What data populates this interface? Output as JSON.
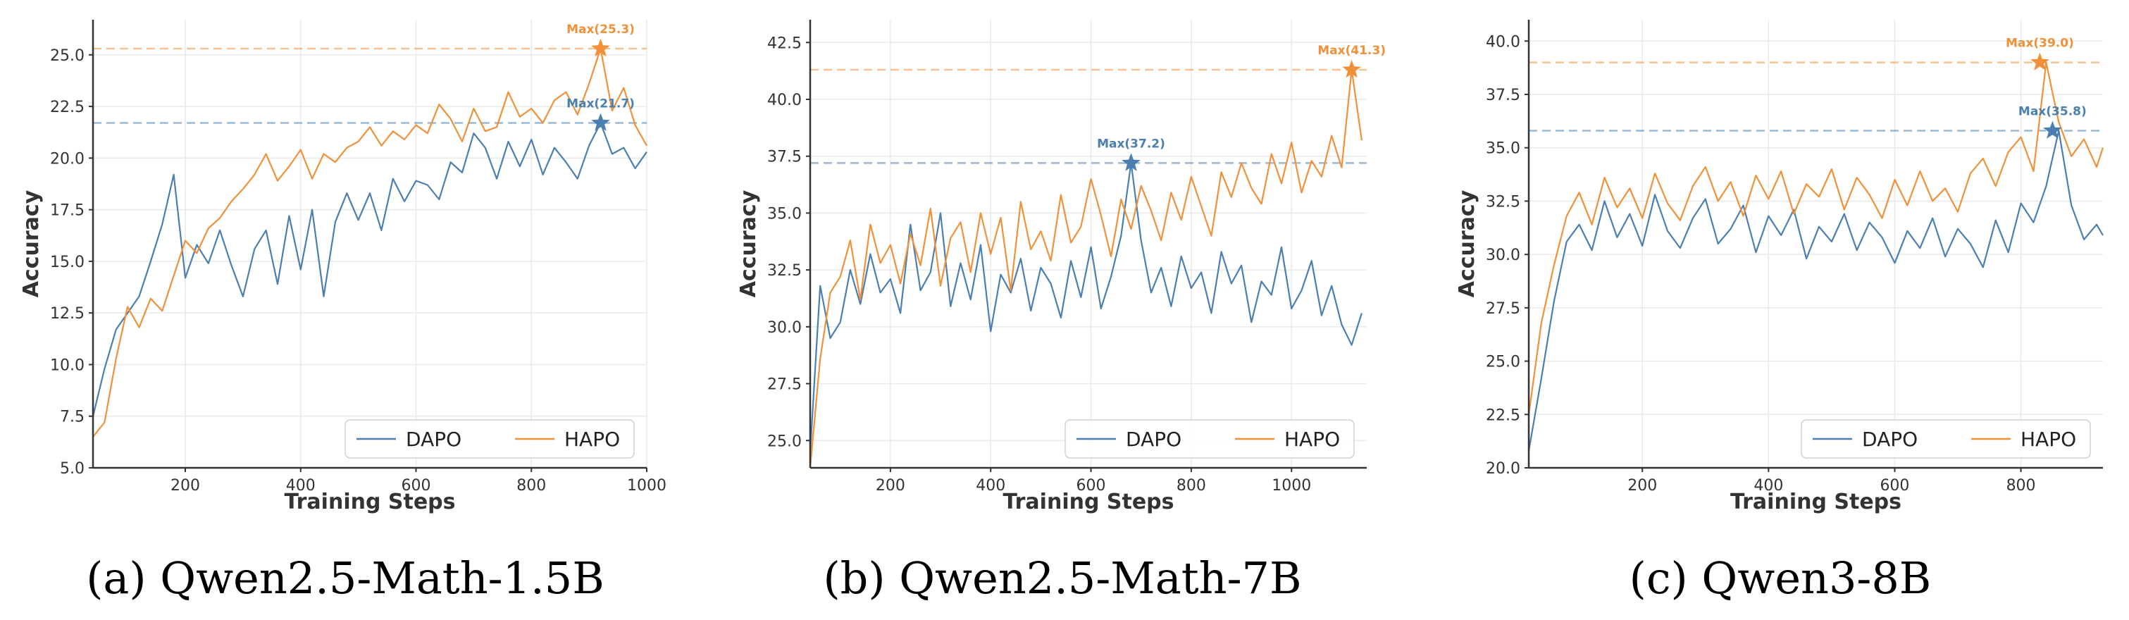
{
  "colors": {
    "dapo": "#4a7fb0",
    "hapo": "#f0913a",
    "grid": "#e9e9e9",
    "axis": "#333333"
  },
  "chart_data": [
    {
      "type": "line",
      "caption": "(a) Qwen2.5-Math-1.5B",
      "xlabel": "Training Steps",
      "ylabel": "Accuracy",
      "xlim": [
        40,
        1000
      ],
      "ylim": [
        5.0,
        26.7
      ],
      "xticks": [
        200,
        400,
        600,
        800,
        1000
      ],
      "yticks": [
        5.0,
        7.5,
        10.0,
        12.5,
        15.0,
        17.5,
        20.0,
        22.5,
        25.0
      ],
      "grid": true,
      "legend": "lower-right",
      "series": [
        {
          "name": "DAPO",
          "color_key": "dapo",
          "x": [
            40,
            60,
            80,
            100,
            120,
            140,
            160,
            180,
            200,
            220,
            240,
            260,
            280,
            300,
            320,
            340,
            360,
            380,
            400,
            420,
            440,
            460,
            480,
            500,
            520,
            540,
            560,
            580,
            600,
            620,
            640,
            660,
            680,
            700,
            720,
            740,
            760,
            780,
            800,
            820,
            840,
            860,
            880,
            900,
            920,
            940,
            960,
            980,
            1000
          ],
          "y": [
            7.5,
            9.8,
            11.7,
            12.5,
            13.3,
            15.0,
            16.8,
            19.2,
            14.2,
            15.8,
            14.9,
            16.5,
            14.8,
            13.3,
            15.6,
            16.5,
            13.9,
            17.2,
            14.6,
            17.5,
            13.3,
            16.9,
            18.3,
            17.0,
            18.3,
            16.5,
            19.0,
            17.9,
            18.9,
            18.7,
            18.0,
            19.8,
            19.3,
            21.2,
            20.5,
            19.0,
            20.8,
            19.6,
            20.9,
            19.2,
            20.5,
            19.8,
            19.0,
            20.6,
            21.7,
            20.2,
            20.5,
            19.5,
            20.3
          ],
          "max": {
            "x": 920,
            "y": 21.7,
            "label": "Max(21.7)"
          }
        },
        {
          "name": "HAPO",
          "color_key": "hapo",
          "x": [
            40,
            60,
            80,
            100,
            120,
            140,
            160,
            180,
            200,
            220,
            240,
            260,
            280,
            300,
            320,
            340,
            360,
            380,
            400,
            420,
            440,
            460,
            480,
            500,
            520,
            540,
            560,
            580,
            600,
            620,
            640,
            660,
            680,
            700,
            720,
            740,
            760,
            780,
            800,
            820,
            840,
            860,
            880,
            900,
            920,
            940,
            960,
            980,
            1000
          ],
          "y": [
            6.5,
            7.2,
            10.3,
            12.8,
            11.8,
            13.2,
            12.6,
            14.3,
            16.0,
            15.4,
            16.6,
            17.1,
            17.9,
            18.5,
            19.2,
            20.2,
            18.9,
            19.6,
            20.4,
            19.0,
            20.2,
            19.8,
            20.5,
            20.8,
            21.5,
            20.6,
            21.3,
            20.9,
            21.6,
            21.2,
            22.6,
            21.9,
            20.8,
            22.4,
            21.3,
            21.5,
            23.2,
            22.0,
            22.4,
            21.7,
            22.8,
            23.2,
            22.1,
            23.6,
            25.3,
            22.3,
            23.4,
            21.6,
            20.6
          ],
          "max": {
            "x": 920,
            "y": 25.3,
            "label": "Max(25.3)"
          }
        }
      ]
    },
    {
      "type": "line",
      "caption": "(b) Qwen2.5-Math-7B",
      "xlabel": "Training Steps",
      "ylabel": "Accuracy",
      "xlim": [
        40,
        1150
      ],
      "ylim": [
        23.8,
        43.5
      ],
      "xticks": [
        200,
        400,
        600,
        800,
        1000
      ],
      "yticks": [
        25.0,
        27.5,
        30.0,
        32.5,
        35.0,
        37.5,
        40.0,
        42.5
      ],
      "grid": true,
      "legend": "lower-right",
      "series": [
        {
          "name": "DAPO",
          "color_key": "dapo",
          "x": [
            40,
            60,
            80,
            100,
            120,
            140,
            160,
            180,
            200,
            220,
            240,
            260,
            280,
            300,
            320,
            340,
            360,
            380,
            400,
            420,
            440,
            460,
            480,
            500,
            520,
            540,
            560,
            580,
            600,
            620,
            640,
            660,
            680,
            700,
            720,
            740,
            760,
            780,
            800,
            820,
            840,
            860,
            880,
            900,
            920,
            940,
            960,
            980,
            1000,
            1020,
            1040,
            1060,
            1080,
            1100,
            1120,
            1140
          ],
          "y": [
            24.5,
            31.8,
            29.5,
            30.2,
            32.5,
            31.0,
            33.2,
            31.5,
            32.1,
            30.6,
            34.5,
            31.6,
            32.4,
            35.0,
            30.9,
            32.8,
            31.2,
            33.6,
            29.8,
            32.3,
            31.5,
            33.0,
            30.7,
            32.6,
            31.9,
            30.4,
            32.9,
            31.3,
            33.5,
            30.8,
            32.2,
            34.0,
            37.2,
            33.8,
            31.5,
            32.6,
            30.9,
            33.1,
            31.7,
            32.4,
            30.6,
            33.3,
            31.9,
            32.7,
            30.2,
            32.0,
            31.4,
            33.5,
            30.8,
            31.6,
            32.9,
            30.5,
            31.8,
            30.1,
            29.2,
            30.6
          ],
          "max": {
            "x": 680,
            "y": 37.2,
            "label": "Max(37.2)"
          }
        },
        {
          "name": "HAPO",
          "color_key": "hapo",
          "x": [
            40,
            60,
            80,
            100,
            120,
            140,
            160,
            180,
            200,
            220,
            240,
            260,
            280,
            300,
            320,
            340,
            360,
            380,
            400,
            420,
            440,
            460,
            480,
            500,
            520,
            540,
            560,
            580,
            600,
            620,
            640,
            660,
            680,
            700,
            720,
            740,
            760,
            780,
            800,
            820,
            840,
            860,
            880,
            900,
            920,
            940,
            960,
            980,
            1000,
            1020,
            1040,
            1060,
            1080,
            1100,
            1120,
            1140
          ],
          "y": [
            23.8,
            28.6,
            31.5,
            32.2,
            33.8,
            31.2,
            34.5,
            32.8,
            33.6,
            31.9,
            34.1,
            32.7,
            35.2,
            31.8,
            33.9,
            34.6,
            32.4,
            35.0,
            33.2,
            34.8,
            31.6,
            35.5,
            33.4,
            34.2,
            32.9,
            35.8,
            33.7,
            34.4,
            36.5,
            34.9,
            33.1,
            35.6,
            34.3,
            36.2,
            35.1,
            33.8,
            35.9,
            34.7,
            36.6,
            35.3,
            34.0,
            36.8,
            35.7,
            37.2,
            36.1,
            35.4,
            37.6,
            36.3,
            38.1,
            35.9,
            37.3,
            36.6,
            38.4,
            37.0,
            41.3,
            38.2
          ],
          "max": {
            "x": 1120,
            "y": 41.3,
            "label": "Max(41.3)"
          }
        }
      ]
    },
    {
      "type": "line",
      "caption": "(c) Qwen3-8B",
      "xlabel": "Training Steps",
      "ylabel": "Accuracy",
      "xlim": [
        20,
        930
      ],
      "ylim": [
        20.0,
        41.0
      ],
      "xticks": [
        200,
        400,
        600,
        800
      ],
      "yticks": [
        20.0,
        22.5,
        25.0,
        27.5,
        30.0,
        32.5,
        35.0,
        37.5,
        40.0
      ],
      "grid": true,
      "legend": "lower-right",
      "series": [
        {
          "name": "DAPO",
          "color_key": "dapo",
          "x": [
            20,
            40,
            60,
            80,
            100,
            120,
            140,
            160,
            180,
            200,
            220,
            240,
            260,
            280,
            300,
            320,
            340,
            360,
            380,
            400,
            420,
            440,
            460,
            480,
            500,
            520,
            540,
            560,
            580,
            600,
            620,
            640,
            660,
            680,
            700,
            720,
            740,
            760,
            780,
            800,
            820,
            840,
            860,
            880,
            900,
            920,
            930
          ],
          "y": [
            20.8,
            24.2,
            27.8,
            30.6,
            31.4,
            30.2,
            32.5,
            30.8,
            31.9,
            30.4,
            32.8,
            31.1,
            30.3,
            31.7,
            32.6,
            30.5,
            31.2,
            32.3,
            30.1,
            31.8,
            30.9,
            32.1,
            29.8,
            31.3,
            30.6,
            31.9,
            30.2,
            31.5,
            30.8,
            29.6,
            31.1,
            30.3,
            31.7,
            29.9,
            31.2,
            30.5,
            29.4,
            31.6,
            30.1,
            32.4,
            31.5,
            33.2,
            35.8,
            32.3,
            30.7,
            31.4,
            30.9
          ],
          "max": {
            "x": 850,
            "y": 35.8,
            "label": "Max(35.8)"
          }
        },
        {
          "name": "HAPO",
          "color_key": "hapo",
          "x": [
            20,
            40,
            60,
            80,
            100,
            120,
            140,
            160,
            180,
            200,
            220,
            240,
            260,
            280,
            300,
            320,
            340,
            360,
            380,
            400,
            420,
            440,
            460,
            480,
            500,
            520,
            540,
            560,
            580,
            600,
            620,
            640,
            660,
            680,
            700,
            720,
            740,
            760,
            780,
            800,
            820,
            840,
            860,
            880,
            900,
            920,
            930
          ],
          "y": [
            22.5,
            26.8,
            29.5,
            31.8,
            32.9,
            31.4,
            33.6,
            32.2,
            33.1,
            31.7,
            33.8,
            32.4,
            31.6,
            33.2,
            34.1,
            32.5,
            33.4,
            31.8,
            33.7,
            32.6,
            33.9,
            31.9,
            33.3,
            32.7,
            34.0,
            32.1,
            33.6,
            32.8,
            31.7,
            33.5,
            32.3,
            33.9,
            32.5,
            33.1,
            32.0,
            33.8,
            34.5,
            33.2,
            34.8,
            35.5,
            33.9,
            39.0,
            36.2,
            34.6,
            35.4,
            34.1,
            35.0
          ],
          "max": {
            "x": 830,
            "y": 39.0,
            "label": "Max(39.0)"
          }
        }
      ]
    }
  ]
}
